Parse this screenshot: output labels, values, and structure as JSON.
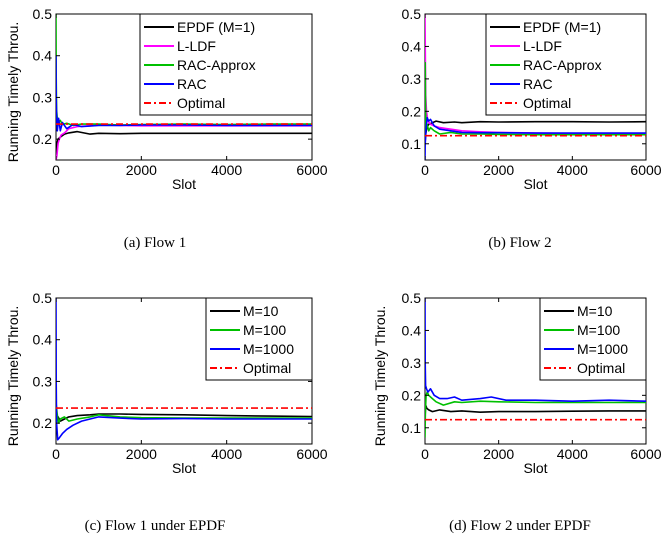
{
  "chart_data": [
    {
      "type": "line",
      "caption": "(a) Flow 1",
      "xlabel": "Slot",
      "ylabel": "Running Timely Throu.",
      "xlim": [
        0,
        6000
      ],
      "ylim": [
        0.15,
        0.5
      ],
      "xticks": [
        0,
        2000,
        4000,
        6000
      ],
      "yticks": [
        0.2,
        0.3,
        0.4,
        0.5
      ],
      "grid": false,
      "legend": "top-right",
      "series": [
        {
          "name": "EPDF (M=1)",
          "color": "#000000",
          "style": "solid",
          "x": [
            0,
            20,
            50,
            100,
            200,
            300,
            500,
            800,
            1000,
            1500,
            2000,
            3000,
            4000,
            5000,
            6000
          ],
          "y": [
            0.17,
            0.19,
            0.2,
            0.205,
            0.212,
            0.215,
            0.218,
            0.212,
            0.214,
            0.213,
            0.214,
            0.214,
            0.214,
            0.214,
            0.214
          ]
        },
        {
          "name": "L-LDF",
          "color": "#ff00ff",
          "style": "solid",
          "x": [
            0,
            20,
            50,
            80,
            120,
            200,
            300,
            500,
            800,
            1000,
            1500,
            2000,
            3000,
            4000,
            5000,
            6000
          ],
          "y": [
            0.15,
            0.16,
            0.19,
            0.2,
            0.21,
            0.215,
            0.225,
            0.23,
            0.232,
            0.234,
            0.233,
            0.232,
            0.232,
            0.232,
            0.232,
            0.232
          ]
        },
        {
          "name": "RAC-Approx",
          "color": "#00c000",
          "style": "solid",
          "x": [
            0,
            5,
            15,
            30,
            60,
            100,
            150,
            250,
            400,
            600,
            1000,
            1500,
            2000,
            3000,
            4000,
            5000,
            6000
          ],
          "y": [
            0.5,
            0.35,
            0.27,
            0.25,
            0.24,
            0.245,
            0.235,
            0.238,
            0.233,
            0.236,
            0.236,
            0.234,
            0.235,
            0.236,
            0.235,
            0.236,
            0.236
          ]
        },
        {
          "name": "RAC",
          "color": "#0000ff",
          "style": "solid",
          "x": [
            0,
            5,
            15,
            30,
            60,
            100,
            150,
            250,
            400,
            600,
            1000,
            1500,
            2000,
            3000,
            4000,
            5000,
            6000
          ],
          "y": [
            0.4,
            0.3,
            0.26,
            0.22,
            0.25,
            0.22,
            0.24,
            0.225,
            0.235,
            0.23,
            0.233,
            0.233,
            0.234,
            0.234,
            0.233,
            0.233,
            0.233
          ]
        },
        {
          "name": "Optimal",
          "color": "#ff0000",
          "style": "dashdot",
          "x": [
            0,
            6000
          ],
          "y": [
            0.236,
            0.236
          ]
        }
      ]
    },
    {
      "type": "line",
      "caption": "(b) Flow 2",
      "xlabel": "Slot",
      "ylabel": "",
      "xlim": [
        0,
        6000
      ],
      "ylim": [
        0.05,
        0.5
      ],
      "xticks": [
        0,
        2000,
        4000,
        6000
      ],
      "yticks": [
        0.1,
        0.2,
        0.3,
        0.4,
        0.5
      ],
      "grid": false,
      "legend": "top-right",
      "series": [
        {
          "name": "EPDF (M=1)",
          "color": "#000000",
          "style": "solid",
          "x": [
            0,
            20,
            50,
            100,
            200,
            300,
            500,
            800,
            1000,
            1500,
            2000,
            3000,
            4000,
            5000,
            6000
          ],
          "y": [
            0.1,
            0.13,
            0.15,
            0.16,
            0.165,
            0.17,
            0.165,
            0.167,
            0.165,
            0.168,
            0.167,
            0.168,
            0.168,
            0.167,
            0.168
          ]
        },
        {
          "name": "L-LDF",
          "color": "#ff00ff",
          "style": "solid",
          "x": [
            0,
            10,
            20,
            40,
            80,
            150,
            250,
            400,
            700,
            1000,
            1500,
            2000,
            3000,
            4000,
            5000,
            6000
          ],
          "y": [
            0.5,
            0.35,
            0.25,
            0.2,
            0.17,
            0.16,
            0.155,
            0.15,
            0.145,
            0.14,
            0.137,
            0.135,
            0.133,
            0.132,
            0.132,
            0.132
          ]
        },
        {
          "name": "RAC-Approx",
          "color": "#00c000",
          "style": "solid",
          "x": [
            0,
            5,
            15,
            30,
            60,
            100,
            150,
            250,
            400,
            700,
            1000,
            1500,
            2000,
            3000,
            4000,
            5000,
            6000
          ],
          "y": [
            0.1,
            0.35,
            0.2,
            0.15,
            0.16,
            0.14,
            0.15,
            0.14,
            0.13,
            0.135,
            0.13,
            0.13,
            0.129,
            0.128,
            0.128,
            0.128,
            0.128
          ]
        },
        {
          "name": "RAC",
          "color": "#0000ff",
          "style": "solid",
          "x": [
            0,
            5,
            15,
            30,
            60,
            100,
            150,
            250,
            400,
            700,
            1000,
            1500,
            2000,
            3000,
            4000,
            5000,
            6000
          ],
          "y": [
            0.05,
            0.1,
            0.12,
            0.15,
            0.18,
            0.17,
            0.175,
            0.155,
            0.145,
            0.14,
            0.135,
            0.134,
            0.134,
            0.133,
            0.133,
            0.133,
            0.133
          ]
        },
        {
          "name": "Optimal",
          "color": "#ff0000",
          "style": "dashdot",
          "x": [
            0,
            6000
          ],
          "y": [
            0.125,
            0.125
          ]
        }
      ]
    },
    {
      "type": "line",
      "caption": "(c) Flow 1 under EPDF",
      "xlabel": "Slot",
      "ylabel": "Running Timely Throu.",
      "xlim": [
        0,
        6000
      ],
      "ylim": [
        0.15,
        0.5
      ],
      "xticks": [
        0,
        2000,
        4000,
        6000
      ],
      "yticks": [
        0.2,
        0.3,
        0.4,
        0.5
      ],
      "grid": false,
      "legend": "top-right",
      "series": [
        {
          "name": "M=10",
          "color": "#000000",
          "style": "solid",
          "x": [
            0,
            20,
            50,
            100,
            200,
            300,
            500,
            800,
            1000,
            1500,
            2000,
            3000,
            4000,
            5000,
            6000
          ],
          "y": [
            0.2,
            0.21,
            0.215,
            0.205,
            0.21,
            0.215,
            0.218,
            0.22,
            0.222,
            0.222,
            0.221,
            0.22,
            0.218,
            0.217,
            0.216
          ]
        },
        {
          "name": "M=100",
          "color": "#00c000",
          "style": "solid",
          "x": [
            0,
            10,
            30,
            60,
            100,
            200,
            300,
            500,
            800,
            1000,
            1500,
            2000,
            3000,
            4000,
            5000,
            6000
          ],
          "y": [
            0.25,
            0.24,
            0.22,
            0.2,
            0.21,
            0.215,
            0.205,
            0.21,
            0.215,
            0.22,
            0.215,
            0.213,
            0.212,
            0.212,
            0.212,
            0.212
          ]
        },
        {
          "name": "M=1000",
          "color": "#0000ff",
          "style": "solid",
          "x": [
            0,
            5,
            15,
            40,
            80,
            150,
            250,
            400,
            600,
            800,
            1000,
            1500,
            2000,
            3000,
            4000,
            5000,
            6000
          ],
          "y": [
            0.5,
            0.3,
            0.2,
            0.16,
            0.165,
            0.175,
            0.185,
            0.195,
            0.205,
            0.21,
            0.215,
            0.212,
            0.21,
            0.211,
            0.21,
            0.21,
            0.21
          ]
        },
        {
          "name": "Optimal",
          "color": "#ff0000",
          "style": "dashdot",
          "x": [
            0,
            6000
          ],
          "y": [
            0.236,
            0.236
          ]
        }
      ]
    },
    {
      "type": "line",
      "caption": "(d) Flow 2 under EPDF",
      "xlabel": "Slot",
      "ylabel": "Running Timely Throu.",
      "xlim": [
        0,
        6000
      ],
      "ylim": [
        0.05,
        0.5
      ],
      "xticks": [
        0,
        2000,
        4000,
        6000
      ],
      "yticks": [
        0.1,
        0.2,
        0.3,
        0.4,
        0.5
      ],
      "grid": false,
      "legend": "top-right",
      "series": [
        {
          "name": "M=10",
          "color": "#000000",
          "style": "solid",
          "x": [
            0,
            20,
            50,
            100,
            200,
            400,
            700,
            1000,
            1500,
            2000,
            3000,
            4000,
            5000,
            6000
          ],
          "y": [
            0.13,
            0.17,
            0.16,
            0.155,
            0.15,
            0.155,
            0.15,
            0.152,
            0.148,
            0.15,
            0.15,
            0.151,
            0.152,
            0.152
          ]
        },
        {
          "name": "M=100",
          "color": "#00c000",
          "style": "solid",
          "x": [
            0,
            10,
            30,
            60,
            100,
            200,
            300,
            500,
            800,
            1000,
            1500,
            2000,
            3000,
            4000,
            5000,
            6000
          ],
          "y": [
            0.07,
            0.15,
            0.2,
            0.21,
            0.2,
            0.19,
            0.18,
            0.17,
            0.18,
            0.178,
            0.182,
            0.18,
            0.178,
            0.178,
            0.178,
            0.178
          ]
        },
        {
          "name": "M=1000",
          "color": "#0000ff",
          "style": "solid",
          "x": [
            0,
            5,
            15,
            40,
            80,
            150,
            250,
            400,
            600,
            800,
            1000,
            1500,
            1800,
            2200,
            3000,
            4000,
            5000,
            6000
          ],
          "y": [
            0.5,
            0.3,
            0.23,
            0.22,
            0.21,
            0.22,
            0.2,
            0.19,
            0.19,
            0.195,
            0.185,
            0.19,
            0.195,
            0.185,
            0.185,
            0.182,
            0.185,
            0.182
          ]
        },
        {
          "name": "Optimal",
          "color": "#ff0000",
          "style": "dashdot",
          "x": [
            0,
            6000
          ],
          "y": [
            0.125,
            0.125
          ]
        }
      ]
    }
  ]
}
